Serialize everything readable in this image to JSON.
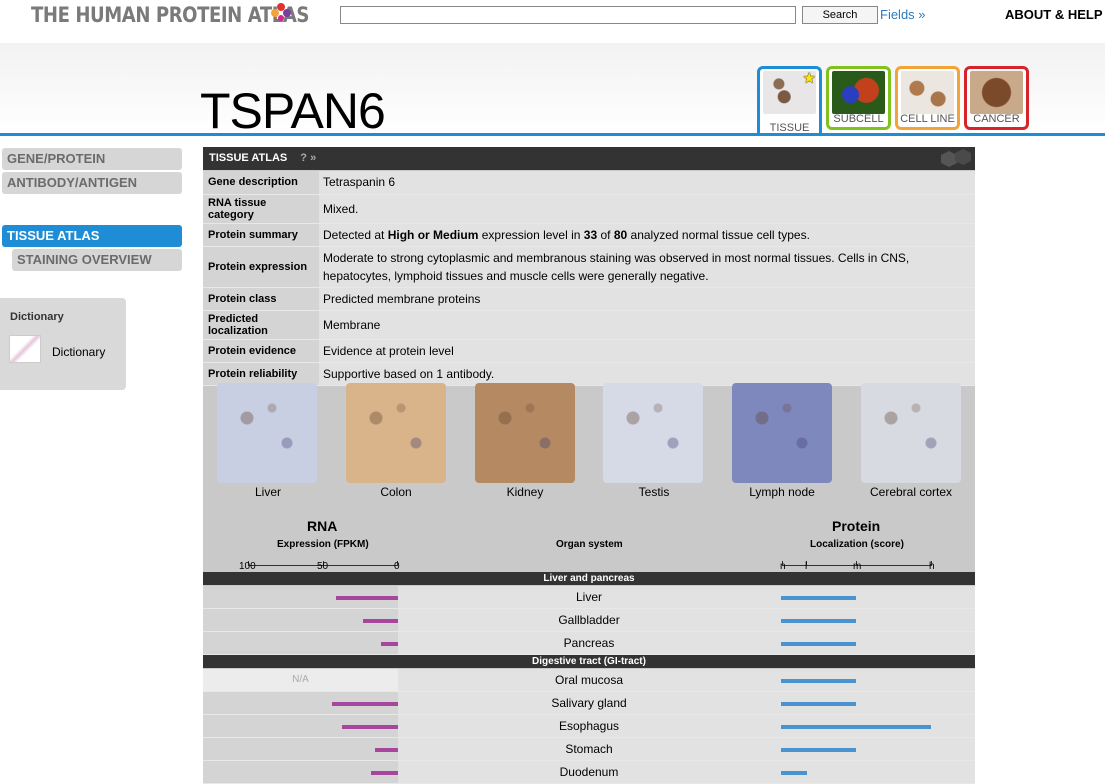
{
  "topbar": {
    "logo_text": "THE HUMAN PROTEIN ATLAS",
    "search_placeholder": "",
    "search_button": "Search",
    "fields_link": "Fields »",
    "about_link": "ABOUT & HELP"
  },
  "gene": "TSPAN6",
  "tabs": [
    {
      "label": "TISSUE",
      "color": "#1f8dd6",
      "active": true
    },
    {
      "label": "SUBCELL",
      "color": "#7fc31c"
    },
    {
      "label": "CELL LINE",
      "color": "#f2a33a"
    },
    {
      "label": "CANCER",
      "color": "#d8232a"
    }
  ],
  "sidebar": {
    "items": [
      {
        "label": "GENE/PROTEIN"
      },
      {
        "label": "ANTIBODY/ANTIGEN"
      },
      {
        "label": "TISSUE ATLAS",
        "active": true
      },
      {
        "label": "STAINING OVERVIEW"
      }
    ],
    "dictionary_title": "Dictionary",
    "dictionary_label": "Dictionary"
  },
  "panel": {
    "title": "TISSUE ATLAS",
    "help": "? »",
    "rows": [
      {
        "key": "Gene description",
        "value": "Tetraspanin 6"
      },
      {
        "key": "RNA tissue category",
        "value": "Mixed."
      },
      {
        "key": "Protein summary",
        "value_parts": [
          "Detected at ",
          "High or Medium",
          " expression level in ",
          "33",
          " of ",
          "80",
          " analyzed normal tissue cell types."
        ]
      },
      {
        "key": "Protein expression",
        "value": "Moderate to strong cytoplasmic and membranous staining was observed in most normal tissues. Cells in CNS, hepatocytes, lymphoid tissues and muscle cells were generally negative."
      },
      {
        "key": "Protein class",
        "value": "Predicted membrane proteins"
      },
      {
        "key": "Predicted localization",
        "value": "Membrane"
      },
      {
        "key": "Protein evidence",
        "value": "Evidence at protein level"
      },
      {
        "key": "Protein reliability",
        "value": "Supportive based on 1 antibody."
      }
    ],
    "tissue_images": [
      {
        "label": "Liver",
        "color": "#c9cfe3"
      },
      {
        "label": "Colon",
        "color": "#d9b48a"
      },
      {
        "label": "Kidney",
        "color": "#b58a62"
      },
      {
        "label": "Testis",
        "color": "#d6d9e6"
      },
      {
        "label": "Lymph node",
        "color": "#7f88bd"
      },
      {
        "label": "Cerebral cortex",
        "color": "#d8dae2"
      }
    ],
    "rna_title": "RNA",
    "rna_sub": "Expression (FPKM)",
    "rna_ticks": [
      "100",
      "50",
      "0"
    ],
    "organ_sub": "Organ system",
    "protein_title": "Protein",
    "protein_sub": "Localization (score)",
    "protein_ticks": [
      "n",
      "l",
      "m",
      "h"
    ]
  },
  "chart_data": {
    "type": "bar",
    "rna_color": "#a6479d",
    "protein_color": "#4a93d1",
    "groups": [
      {
        "name": "Liver and pancreas",
        "rows": [
          {
            "organ": "Liver",
            "rna_fpkm": 41,
            "protein_score": "m"
          },
          {
            "organ": "Gallbladder",
            "rna_fpkm": 23,
            "protein_score": "m"
          },
          {
            "organ": "Pancreas",
            "rna_fpkm": 11,
            "protein_score": "m"
          }
        ]
      },
      {
        "name": "Digestive tract (GI-tract)",
        "rows": [
          {
            "organ": "Oral mucosa",
            "rna_fpkm": null,
            "rna_na": "N/A",
            "protein_score": "m"
          },
          {
            "organ": "Salivary gland",
            "rna_fpkm": 44,
            "protein_score": "m"
          },
          {
            "organ": "Esophagus",
            "rna_fpkm": 37,
            "protein_score": "h"
          },
          {
            "organ": "Stomach",
            "rna_fpkm": 15,
            "protein_score": "m"
          },
          {
            "organ": "Duodenum",
            "rna_fpkm": 18,
            "protein_score": "l"
          }
        ]
      }
    ]
  }
}
